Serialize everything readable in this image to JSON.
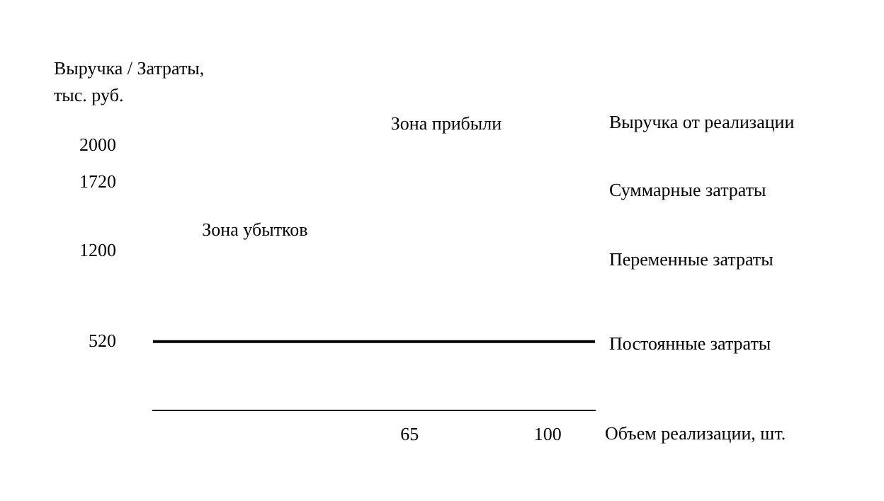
{
  "chart_data": {
    "type": "line",
    "ylabel": "Выручка / Затраты,\nтыс. руб.",
    "xlabel": "Объем реализации, шт.",
    "x": [
      0,
      112
    ],
    "series": [
      {
        "name": "Постоянные затраты",
        "color": "#000000",
        "values": [
          520,
          520
        ]
      }
    ],
    "xlim": [
      0,
      112
    ],
    "xticks": [
      65,
      100
    ],
    "ylim": [
      0,
      2000
    ],
    "yticks": [
      520,
      1200,
      1720,
      2000
    ],
    "annotations": [
      "Зона прибыли",
      "Зона убытков",
      "Выручка от реализации",
      "Суммарные затраты",
      "Переменные затраты"
    ],
    "grid": false,
    "legend": false,
    "marker": "none",
    "line_style": "solid"
  }
}
